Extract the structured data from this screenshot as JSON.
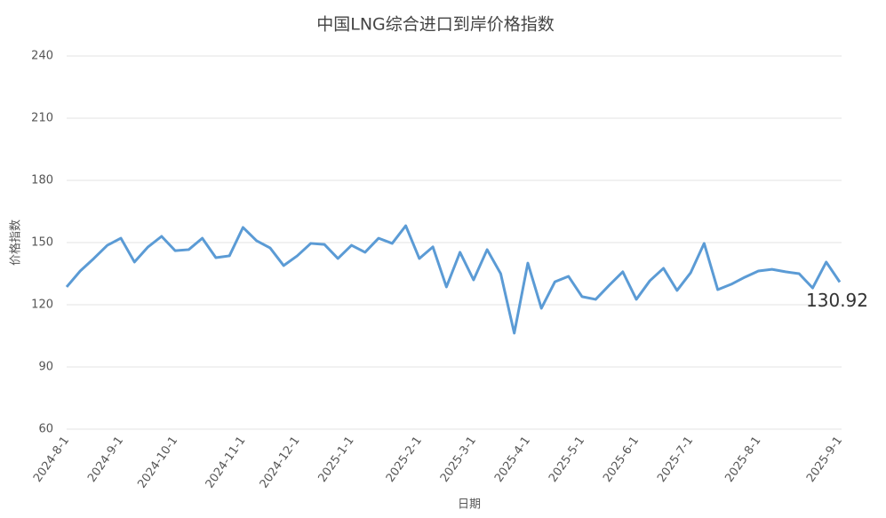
{
  "chart_data": {
    "type": "line",
    "title": "中国LNG综合进口到岸价格指数",
    "x_label": "日期",
    "y_label": "价格指数",
    "categories": [
      "2024-8-1",
      null,
      null,
      null,
      "2024-9-1",
      null,
      null,
      null,
      "2024-10-1",
      null,
      null,
      null,
      null,
      "2024-11-1",
      null,
      null,
      null,
      "2024-12-1",
      null,
      null,
      null,
      "2025-1-1",
      null,
      null,
      null,
      null,
      "2025-2-1",
      null,
      null,
      null,
      "2025-3-1",
      null,
      null,
      null,
      "2025-4-1",
      null,
      null,
      null,
      "2025-5-1",
      null,
      null,
      null,
      "2025-6-1",
      null,
      null,
      null,
      "2025-7-1",
      null,
      null,
      null,
      null,
      "2025-8-1",
      null,
      null,
      null,
      null,
      null,
      "2025-9-1"
    ],
    "values": [
      128.6,
      136.3,
      142.3,
      148.7,
      152.1,
      140.6,
      147.9,
      153,
      146.1,
      146.6,
      152.1,
      142.7,
      143.6,
      157.3,
      150.9,
      147.4,
      138.9,
      143.6,
      149.6,
      149.1,
      142.3,
      148.7,
      145.3,
      152.1,
      149.6,
      158.1,
      142.3,
      147.9,
      128.6,
      145.3,
      132,
      146.6,
      135,
      106.3,
      140.1,
      118.3,
      131.1,
      133.7,
      123.9,
      122.6,
      129.4,
      135.9,
      122.6,
      131.6,
      137.6,
      126.9,
      135.4,
      149.6,
      127.3,
      129.9,
      133.3,
      136.3,
      137.1,
      135.9,
      135,
      128.1,
      140.6,
      130.92
    ],
    "color": "#5b9bd5",
    "ylim": [
      60,
      240
    ],
    "yticks": [
      60,
      90,
      120,
      150,
      180,
      210,
      240
    ],
    "grid": true
  }
}
